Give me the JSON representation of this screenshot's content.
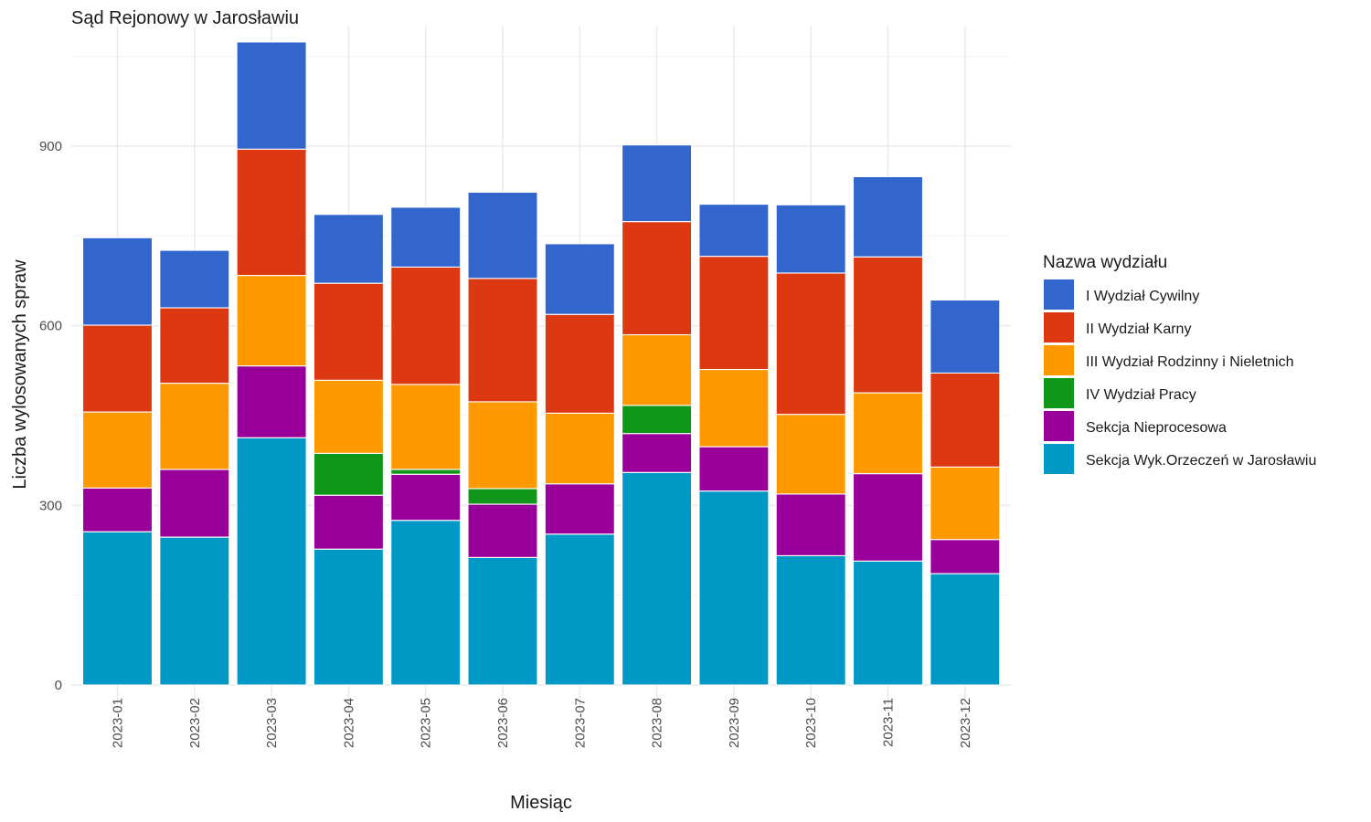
{
  "chart_data": {
    "type": "bar",
    "stacked": true,
    "title": "Sąd Rejonowy w Jarosławiu",
    "xlabel": "Miesiąc",
    "ylabel": "Liczba wylosowanych spraw",
    "ylim": [
      0,
      1100
    ],
    "yticks": [
      0,
      300,
      600,
      900
    ],
    "grid": true,
    "legend_title": "Nazwa wydziału",
    "legend_position": "right",
    "categories": [
      "2023-01",
      "2023-02",
      "2023-03",
      "2023-04",
      "2023-05",
      "2023-06",
      "2023-07",
      "2023-08",
      "2023-09",
      "2023-10",
      "2023-11",
      "2023-12"
    ],
    "series": [
      {
        "name": "Sekcja Wyk.Orzeczeń w Jarosławiu",
        "color": "#0099C6",
        "values": [
          256,
          247,
          413,
          227,
          275,
          213,
          252,
          355,
          324,
          216,
          207,
          186
        ]
      },
      {
        "name": "Sekcja Nieprocesowa",
        "color": "#990099",
        "values": [
          73,
          113,
          120,
          90,
          77,
          89,
          84,
          65,
          74,
          103,
          146,
          57
        ]
      },
      {
        "name": "IV Wydział Pracy",
        "color": "#109618",
        "values": [
          0,
          0,
          0,
          70,
          8,
          26,
          0,
          47,
          0,
          0,
          0,
          0
        ]
      },
      {
        "name": "III Wydział Rodzinny i Nieletnich",
        "color": "#FF9900",
        "values": [
          127,
          144,
          151,
          122,
          142,
          145,
          118,
          118,
          129,
          133,
          135,
          121
        ]
      },
      {
        "name": "II Wydział Karny",
        "color": "#DC3912",
        "values": [
          145,
          126,
          211,
          162,
          196,
          206,
          165,
          189,
          189,
          236,
          227,
          157
        ]
      },
      {
        "name": "I Wydział Cywilny",
        "color": "#3366CC",
        "values": [
          146,
          96,
          179,
          115,
          100,
          144,
          118,
          128,
          87,
          114,
          134,
          122
        ]
      }
    ],
    "legend_order": [
      "I Wydział Cywilny",
      "II Wydział Karny",
      "III Wydział Rodzinny i Nieletnich",
      "IV Wydział Pracy",
      "Sekcja Nieprocesowa",
      "Sekcja Wyk.Orzeczeń w Jarosławiu"
    ]
  }
}
